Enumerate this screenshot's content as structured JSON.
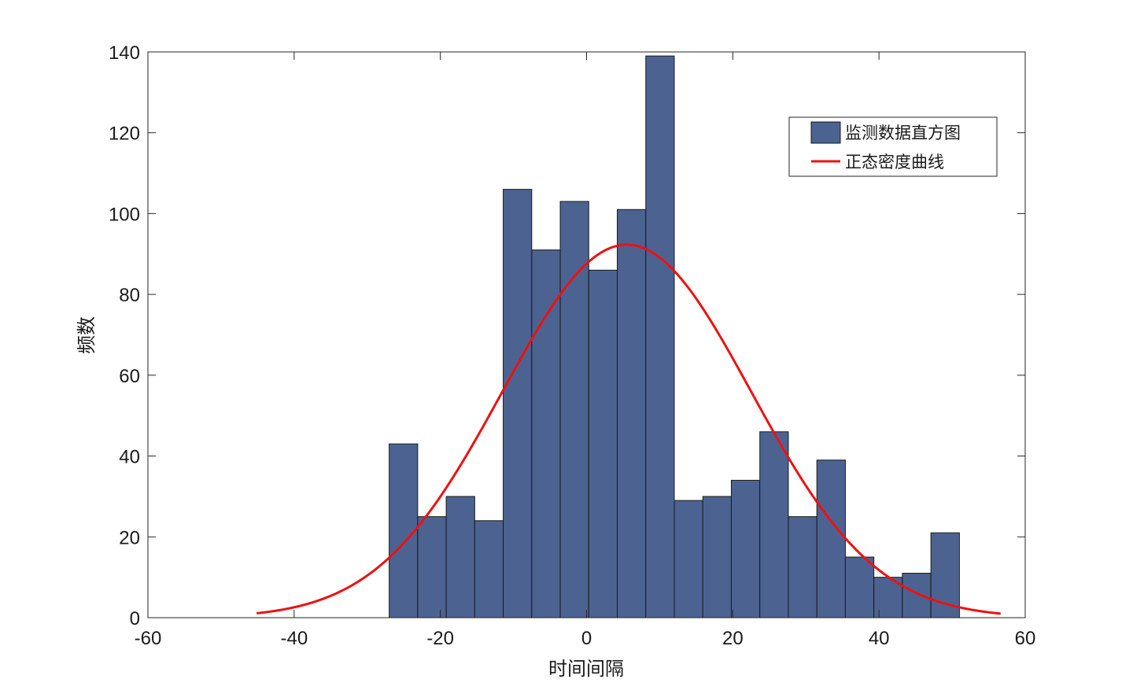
{
  "chart_data": {
    "type": "bar",
    "title": "",
    "xlabel": "时间间隔",
    "ylabel": "频数",
    "xlim": [
      -60,
      60
    ],
    "ylim": [
      0,
      140
    ],
    "xticks": [
      -60,
      -40,
      -20,
      0,
      20,
      40,
      60
    ],
    "yticks": [
      0,
      20,
      40,
      60,
      80,
      100,
      120,
      140
    ],
    "grid": false,
    "legend_position": "top-right",
    "series": [
      {
        "name": "监测数据直方图",
        "kind": "histogram",
        "color": "#4c6391",
        "edge_color": "#1a1a1a",
        "bin_edges": [
          -27,
          -23.1,
          -19.2,
          -15.3,
          -11.4,
          -7.5,
          -3.6,
          0.3,
          4.2,
          8.1,
          12,
          15.9,
          19.8,
          23.7,
          27.6,
          31.5,
          35.4,
          39.3,
          43.2,
          47.1,
          51
        ],
        "values": [
          43,
          25,
          30,
          24,
          106,
          91,
          103,
          86,
          101,
          139,
          29,
          30,
          34,
          46,
          25,
          39,
          15,
          10,
          11,
          21
        ]
      },
      {
        "name": "正态密度曲线",
        "kind": "line",
        "color": "#ee1111",
        "mean": 5.5,
        "sd": 17,
        "peak": 92.3,
        "x_range": [
          -45,
          56.5
        ]
      }
    ]
  }
}
